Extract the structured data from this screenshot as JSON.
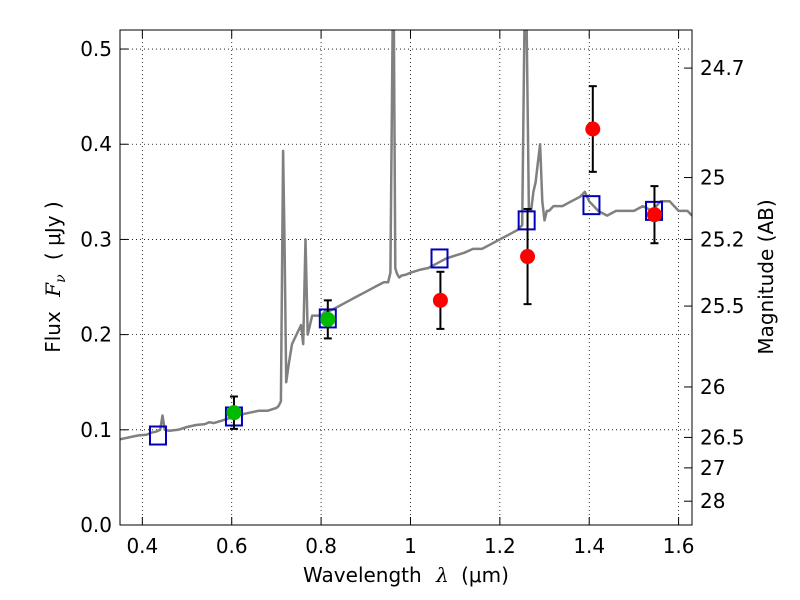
{
  "chart_data": {
    "type": "scatter",
    "title": "",
    "xlabel": {
      "text": "Wavelength",
      "symbol": "λ",
      "open": "(",
      "unit": "μm",
      "close": ")"
    },
    "ylabel": {
      "text": "Flux",
      "symbol": "F",
      "sub": "ν",
      "open": "(",
      "unit": "μJy",
      "close": ")"
    },
    "y2label": "Magnitude (AB)",
    "xlim": [
      0.35,
      1.63
    ],
    "ylim": [
      0.0,
      0.52
    ],
    "grid": true,
    "xticks": [
      {
        "value": 0.4,
        "label": "0.4"
      },
      {
        "value": 0.6,
        "label": "0.6"
      },
      {
        "value": 0.8,
        "label": "0.8"
      },
      {
        "value": 1.0,
        "label": "1"
      },
      {
        "value": 1.2,
        "label": "1.2"
      },
      {
        "value": 1.4,
        "label": "1.4"
      },
      {
        "value": 1.6,
        "label": "1.6"
      }
    ],
    "yticks": [
      {
        "value": 0.0,
        "label": "0.0"
      },
      {
        "value": 0.1,
        "label": "0.1"
      },
      {
        "value": 0.2,
        "label": "0.2"
      },
      {
        "value": 0.3,
        "label": "0.3"
      },
      {
        "value": 0.4,
        "label": "0.4"
      },
      {
        "value": 0.5,
        "label": "0.5"
      }
    ],
    "magnitude_ticks": [
      {
        "flux": 0.48,
        "label": "24.7"
      },
      {
        "flux": 0.365,
        "label": "25"
      },
      {
        "flux": 0.3,
        "label": "25.2"
      },
      {
        "flux": 0.23,
        "label": "25.5"
      },
      {
        "flux": 0.145,
        "label": "26"
      },
      {
        "flux": 0.092,
        "label": "26.5"
      },
      {
        "flux": 0.06,
        "label": "27"
      },
      {
        "flux": 0.025,
        "label": "28"
      }
    ],
    "series": [
      {
        "name": "model-spectrum",
        "kind": "line",
        "color": "#808080",
        "x": [
          0.35,
          0.37,
          0.39,
          0.41,
          0.42,
          0.43,
          0.44,
          0.445,
          0.45,
          0.46,
          0.48,
          0.5,
          0.52,
          0.54,
          0.55,
          0.56,
          0.58,
          0.6,
          0.62,
          0.64,
          0.66,
          0.68,
          0.7,
          0.705,
          0.71,
          0.715,
          0.718,
          0.722,
          0.728,
          0.735,
          0.745,
          0.755,
          0.76,
          0.765,
          0.77,
          0.78,
          0.79,
          0.8,
          0.81,
          0.82,
          0.84,
          0.86,
          0.88,
          0.9,
          0.92,
          0.94,
          0.95,
          0.955,
          0.96,
          0.963,
          0.966,
          0.969,
          0.972,
          0.975,
          0.98,
          0.99,
          1.0,
          1.02,
          1.04,
          1.06,
          1.08,
          1.1,
          1.12,
          1.14,
          1.16,
          1.18,
          1.2,
          1.22,
          1.24,
          1.25,
          1.255,
          1.26,
          1.265,
          1.27,
          1.275,
          1.28,
          1.285,
          1.29,
          1.295,
          1.3,
          1.305,
          1.31,
          1.32,
          1.34,
          1.36,
          1.38,
          1.39,
          1.4,
          1.42,
          1.44,
          1.46,
          1.48,
          1.5,
          1.52,
          1.54,
          1.56,
          1.58,
          1.6,
          1.62,
          1.63
        ],
        "y": [
          0.09,
          0.092,
          0.094,
          0.095,
          0.097,
          0.098,
          0.1,
          0.115,
          0.1,
          0.099,
          0.1,
          0.103,
          0.105,
          0.106,
          0.108,
          0.107,
          0.11,
          0.113,
          0.116,
          0.118,
          0.12,
          0.12,
          0.123,
          0.125,
          0.13,
          0.393,
          0.3,
          0.15,
          0.17,
          0.19,
          0.2,
          0.21,
          0.19,
          0.3,
          0.2,
          0.22,
          0.22,
          0.22,
          0.225,
          0.225,
          0.23,
          0.235,
          0.24,
          0.245,
          0.25,
          0.255,
          0.255,
          0.265,
          0.52,
          0.52,
          0.27,
          0.265,
          0.262,
          0.26,
          0.262,
          0.263,
          0.265,
          0.268,
          0.27,
          0.275,
          0.28,
          0.283,
          0.286,
          0.29,
          0.29,
          0.295,
          0.3,
          0.305,
          0.31,
          0.315,
          0.52,
          0.52,
          0.33,
          0.33,
          0.35,
          0.36,
          0.38,
          0.4,
          0.34,
          0.32,
          0.33,
          0.33,
          0.335,
          0.335,
          0.34,
          0.345,
          0.35,
          0.34,
          0.33,
          0.325,
          0.33,
          0.33,
          0.33,
          0.335,
          0.33,
          0.34,
          0.34,
          0.33,
          0.33,
          0.325
        ]
      },
      {
        "name": "model-photometry",
        "kind": "square",
        "color": "#0000bb",
        "x": [
          0.435,
          0.605,
          0.815,
          1.065,
          1.26,
          1.405,
          1.545
        ],
        "y": [
          0.094,
          0.114,
          0.217,
          0.28,
          0.32,
          0.336,
          0.33
        ]
      },
      {
        "name": "observed-green",
        "kind": "circle",
        "color": "#00bb00",
        "x": [
          0.605,
          0.815
        ],
        "y": [
          0.118,
          0.216
        ],
        "yerr": [
          0.017,
          0.02
        ]
      },
      {
        "name": "observed-red",
        "kind": "circle",
        "color": "#ff0000",
        "x": [
          1.067,
          1.262,
          1.408,
          1.546
        ],
        "y": [
          0.236,
          0.282,
          0.416,
          0.326
        ],
        "yerr": [
          0.03,
          0.05,
          0.045,
          0.03
        ]
      }
    ]
  }
}
